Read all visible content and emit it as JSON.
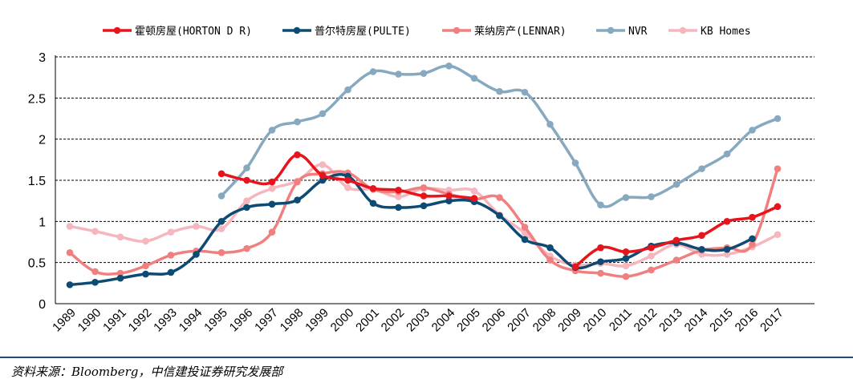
{
  "source_note": "资料来源：Bloomberg，中信建投证券研究发展部",
  "chart_data": {
    "type": "line",
    "x": [
      "1989",
      "1990",
      "1991",
      "1992",
      "1993",
      "1994",
      "1995",
      "1996",
      "1997",
      "1998",
      "1999",
      "2000",
      "2001",
      "2002",
      "2003",
      "2004",
      "2005",
      "2006",
      "2007",
      "2008",
      "2009",
      "2010",
      "2011",
      "2012",
      "2013",
      "2014",
      "2015",
      "2016",
      "2017"
    ],
    "ylim": [
      0,
      3
    ],
    "yticks": [
      "0",
      "0.5",
      "1",
      "1.5",
      "2",
      "2.5",
      "3"
    ],
    "grid": "dashed horizontal",
    "legend_position": "top",
    "series": [
      {
        "name": "霍顿房屋(HORTON D R)",
        "color": "#e8141c",
        "values": [
          null,
          null,
          null,
          null,
          null,
          null,
          1.58,
          1.5,
          1.48,
          1.81,
          1.56,
          1.5,
          1.4,
          1.38,
          1.31,
          1.31,
          1.28,
          null,
          null,
          null,
          0.45,
          0.68,
          0.63,
          0.68,
          0.77,
          0.83,
          1.0,
          1.05,
          1.18
        ]
      },
      {
        "name": "普尔特房屋(PULTE)",
        "color": "#0d4a74",
        "values": [
          0.23,
          0.26,
          0.31,
          0.36,
          0.38,
          0.6,
          1.0,
          1.17,
          1.21,
          1.26,
          1.5,
          1.55,
          1.22,
          1.17,
          1.19,
          1.25,
          1.24,
          1.07,
          0.78,
          0.68,
          0.44,
          0.51,
          0.55,
          0.7,
          0.74,
          0.66,
          0.66,
          0.79,
          null
        ]
      },
      {
        "name": "莱纳房产(LENNAR)",
        "color": "#f08080",
        "values": [
          0.62,
          0.39,
          0.37,
          0.46,
          0.59,
          0.64,
          0.62,
          0.67,
          0.87,
          1.48,
          1.58,
          1.59,
          1.39,
          1.36,
          1.41,
          1.33,
          1.27,
          1.29,
          0.93,
          0.53,
          0.4,
          0.37,
          0.33,
          0.41,
          0.53,
          0.65,
          0.68,
          0.72,
          1.64
        ]
      },
      {
        "name": "NVR",
        "color": "#87a9c0",
        "values": [
          null,
          null,
          null,
          null,
          null,
          null,
          1.31,
          1.65,
          2.11,
          2.21,
          2.31,
          2.6,
          2.82,
          2.79,
          2.8,
          2.89,
          2.74,
          2.58,
          2.57,
          2.18,
          1.71,
          1.2,
          1.29,
          1.3,
          1.45,
          1.64,
          1.82,
          2.11,
          2.25
        ]
      },
      {
        "name": "KB Homes",
        "color": "#f6b6bd",
        "values": [
          0.94,
          0.88,
          0.81,
          0.76,
          0.87,
          0.94,
          0.91,
          1.25,
          1.4,
          1.49,
          1.69,
          1.41,
          1.39,
          1.3,
          1.4,
          1.38,
          1.37,
          1.08,
          0.86,
          0.58,
          0.47,
          0.49,
          0.46,
          0.58,
          0.72,
          0.6,
          0.6,
          0.69,
          0.84
        ]
      }
    ]
  }
}
